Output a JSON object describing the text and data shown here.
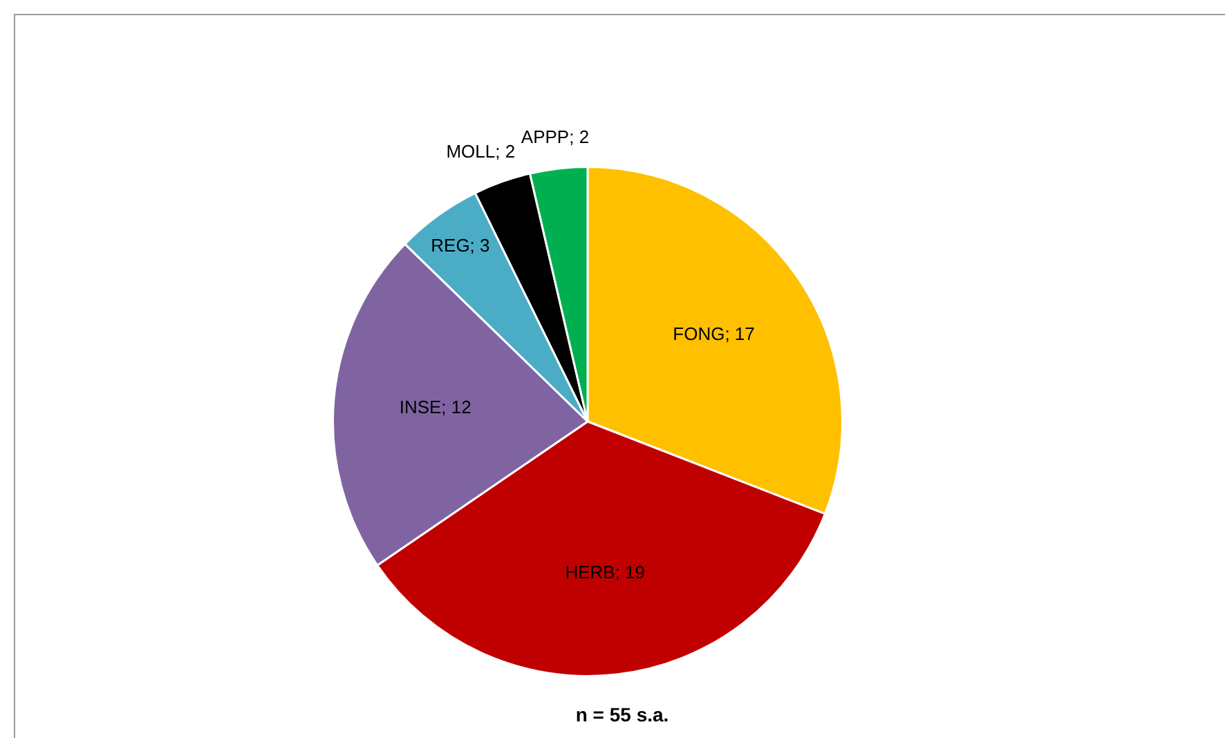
{
  "chart_data": {
    "type": "pie",
    "categories": [
      "FONG",
      "HERB",
      "INSE",
      "REG",
      "MOLL",
      "APPP"
    ],
    "values": [
      17,
      19,
      12,
      3,
      2,
      2
    ],
    "colors": [
      "#ffc000",
      "#c00000",
      "#8064a2",
      "#4bacc6",
      "#000000",
      "#00b050"
    ],
    "value_labels": [
      "; 17",
      "; 19",
      "; 12",
      "; 3",
      "; 2",
      "; 2"
    ],
    "legend": false,
    "annotations": [
      "n = 55 s.a."
    ]
  }
}
